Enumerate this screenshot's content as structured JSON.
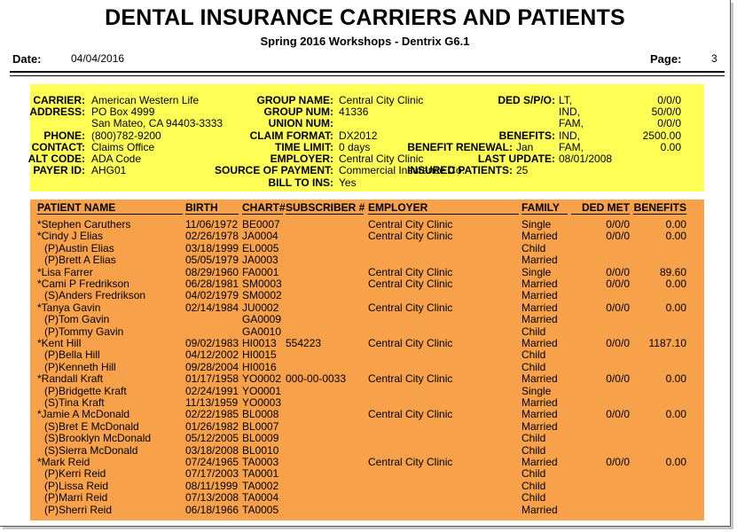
{
  "report": {
    "title": "DENTAL INSURANCE CARRIERS AND PATIENTS",
    "subtitle": "Spring 2016 Workshops - Dentrix G6.1",
    "date_label": "Date:",
    "date_value": "04/04/2016",
    "page_label": "Page:",
    "page_value": "3"
  },
  "carrier": {
    "carrier_label": "CARRIER:",
    "carrier_value": "American Western Life",
    "address_label": "ADDRESS:",
    "address_line1": "PO Box 4999",
    "address_line2": "San Mateo, CA  94403-3333",
    "phone_label": "PHONE:",
    "phone_value": "(800)782-9200",
    "contact_label": "CONTACT:",
    "contact_value": "Claims Office",
    "altcode_label": "ALT CODE:",
    "altcode_value": "ADA Code",
    "payer_label": "PAYER ID:",
    "payer_value": "AHG01",
    "group_name_label": "GROUP NAME:",
    "group_name_value": "Central City Clinic",
    "group_num_label": "GROUP NUM:",
    "group_num_value": "41336",
    "union_num_label": "UNION NUM:",
    "union_num_value": "",
    "claim_format_label": "CLAIM FORMAT:",
    "claim_format_value": "DX2012",
    "time_limit_label": "TIME LIMIT:",
    "time_limit_value": "0 days",
    "employer_label": "EMPLOYER:",
    "employer_value": "Central City Clinic",
    "source_label": "SOURCE OF PAYMENT:",
    "source_value": "Commercial Insurance Co.",
    "bill_label": "BILL TO INS:",
    "bill_value": "Yes",
    "benefit_renewal_label": "BENEFIT RENEWAL:",
    "benefit_renewal_value": "Jan",
    "insured_label": "INSURED PATIENTS:",
    "insured_value": "25",
    "ded_label": "DED S/P/O:",
    "ded_lt": "LT,",
    "ded_lt_val": "0/0/0",
    "ded_ind": "IND,",
    "ded_ind_val": "50/0/0",
    "ded_fam": "FAM,",
    "ded_fam_val": "0/0/0",
    "benefits_label": "BENEFITS:",
    "ben_ind": "IND,",
    "ben_ind_val": "2500.00",
    "ben_fam": "FAM,",
    "ben_fam_val": "0.00",
    "last_update_label": "LAST UPDATE:",
    "last_update_value": "08/01/2008"
  },
  "patients": {
    "headers": {
      "name": "PATIENT NAME",
      "birth": "BIRTH",
      "chart": "CHART#",
      "subscriber": "SUBSCRIBER #",
      "employer": "EMPLOYER",
      "family": "FAMILY",
      "ded_met": "DED MET",
      "benefits": "BENEFITS"
    },
    "rows": [
      {
        "name": "*Stephen Caruthers",
        "birth": "11/06/1972",
        "chart": "BE0007",
        "subscriber": "",
        "employer": "Central City Clinic",
        "family": "Single",
        "ded": "0/0/0",
        "benefits": "0.00"
      },
      {
        "name": "*Cindy J Elias",
        "birth": "02/26/1978",
        "chart": "JA0004",
        "subscriber": "",
        "employer": "Central City Clinic",
        "family": "Married",
        "ded": "0/0/0",
        "benefits": "0.00"
      },
      {
        "name": "(P)Austin Elias",
        "birth": "03/18/1999",
        "chart": "EL0005",
        "subscriber": "",
        "employer": "",
        "family": "Child",
        "ded": "",
        "benefits": ""
      },
      {
        "name": "(P)Brett A Elias",
        "birth": "05/05/1979",
        "chart": "JA0003",
        "subscriber": "",
        "employer": "",
        "family": "Married",
        "ded": "",
        "benefits": ""
      },
      {
        "name": "*Lisa Farrer",
        "birth": "08/29/1960",
        "chart": "FA0001",
        "subscriber": "",
        "employer": "Central City Clinic",
        "family": "Single",
        "ded": "0/0/0",
        "benefits": "89.60"
      },
      {
        "name": "*Cami P Fredrikson",
        "birth": "06/28/1981",
        "chart": "SM0003",
        "subscriber": "",
        "employer": "Central City Clinic",
        "family": "Married",
        "ded": "0/0/0",
        "benefits": "0.00"
      },
      {
        "name": "(S)Anders Fredrikson",
        "birth": "04/02/1979",
        "chart": "SM0002",
        "subscriber": "",
        "employer": "",
        "family": "Married",
        "ded": "",
        "benefits": ""
      },
      {
        "name": "*Tanya Gavin",
        "birth": "02/14/1984",
        "chart": "JU0002",
        "subscriber": "",
        "employer": "Central City Clinic",
        "family": "Married",
        "ded": "0/0/0",
        "benefits": "0.00"
      },
      {
        "name": "(P)Tom Gavin",
        "birth": "",
        "chart": "GA0009",
        "subscriber": "",
        "employer": "",
        "family": "Married",
        "ded": "",
        "benefits": ""
      },
      {
        "name": "(P)Tommy Gavin",
        "birth": "",
        "chart": "GA0010",
        "subscriber": "",
        "employer": "",
        "family": "Child",
        "ded": "",
        "benefits": ""
      },
      {
        "name": "*Kent Hill",
        "birth": "09/02/1983",
        "chart": "HI0013",
        "subscriber": "554223",
        "employer": "Central City Clinic",
        "family": "Married",
        "ded": "0/0/0",
        "benefits": "1187.10"
      },
      {
        "name": "(P)Bella Hill",
        "birth": "04/12/2002",
        "chart": "HI0015",
        "subscriber": "",
        "employer": "",
        "family": "Child",
        "ded": "",
        "benefits": ""
      },
      {
        "name": "(P)Kenneth Hill",
        "birth": "09/28/2004",
        "chart": "HI0016",
        "subscriber": "",
        "employer": "",
        "family": "Child",
        "ded": "",
        "benefits": ""
      },
      {
        "name": "*Randall Kraft",
        "birth": "01/17/1958",
        "chart": "YO0002",
        "subscriber": "000-00-0033",
        "employer": "Central City Clinic",
        "family": "Married",
        "ded": "0/0/0",
        "benefits": "0.00"
      },
      {
        "name": "(P)Bridgette Kraft",
        "birth": "02/24/1991",
        "chart": "YO0001",
        "subscriber": "",
        "employer": "",
        "family": "Single",
        "ded": "",
        "benefits": ""
      },
      {
        "name": "(S)Tina Kraft",
        "birth": "11/13/1959",
        "chart": "YO0003",
        "subscriber": "",
        "employer": "",
        "family": "Married",
        "ded": "",
        "benefits": ""
      },
      {
        "name": "*Jamie A McDonald",
        "birth": "02/22/1985",
        "chart": "BL0008",
        "subscriber": "",
        "employer": "Central City Clinic",
        "family": "Married",
        "ded": "0/0/0",
        "benefits": "0.00"
      },
      {
        "name": "(S)Bret E McDonald",
        "birth": "01/26/1982",
        "chart": "BL0007",
        "subscriber": "",
        "employer": "",
        "family": "Married",
        "ded": "",
        "benefits": ""
      },
      {
        "name": "(S)Brooklyn McDonald",
        "birth": "05/12/2005",
        "chart": "BL0009",
        "subscriber": "",
        "employer": "",
        "family": "Child",
        "ded": "",
        "benefits": ""
      },
      {
        "name": "(S)Sierra McDonald",
        "birth": "03/18/2008",
        "chart": "BL0010",
        "subscriber": "",
        "employer": "",
        "family": "Child",
        "ded": "",
        "benefits": ""
      },
      {
        "name": "*Mark Reid",
        "birth": "07/24/1965",
        "chart": "TA0003",
        "subscriber": "",
        "employer": "Central City Clinic",
        "family": "Married",
        "ded": "0/0/0",
        "benefits": "0.00"
      },
      {
        "name": "(P)Kerri Reid",
        "birth": "07/17/2003",
        "chart": "TA0001",
        "subscriber": "",
        "employer": "",
        "family": "Child",
        "ded": "",
        "benefits": ""
      },
      {
        "name": "(P)Lissa Reid",
        "birth": "08/11/1999",
        "chart": "TA0002",
        "subscriber": "",
        "employer": "",
        "family": "Child",
        "ded": "",
        "benefits": ""
      },
      {
        "name": "(P)Marri Reid",
        "birth": "07/13/2008",
        "chart": "TA0004",
        "subscriber": "",
        "employer": "",
        "family": "Child",
        "ded": "",
        "benefits": ""
      },
      {
        "name": "(P)Sherri Reid",
        "birth": "06/18/1966",
        "chart": "TA0005",
        "subscriber": "",
        "employer": "",
        "family": "Married",
        "ded": "",
        "benefits": ""
      }
    ]
  }
}
